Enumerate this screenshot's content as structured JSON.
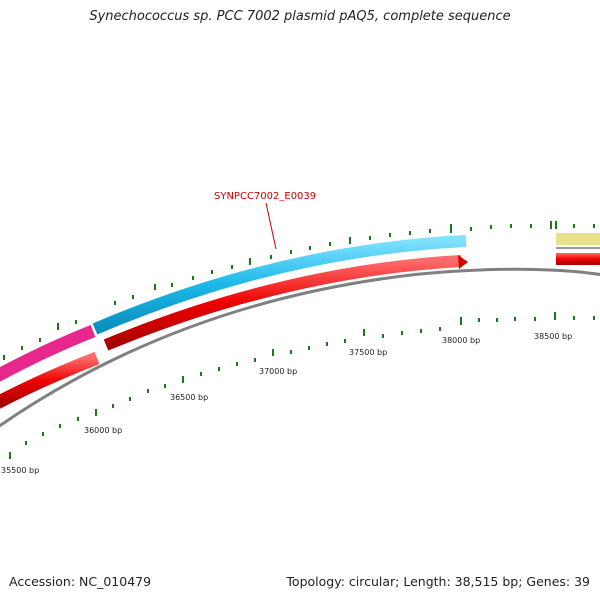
{
  "title": "Synechococcus sp. PCC 7002 plasmid pAQ5, complete sequence",
  "footer": {
    "accession": "Accession: NC_010479",
    "info": "Topology: circular; Length: 38,515 bp; Genes: 39"
  },
  "gene_label": "SYNPCC7002_E0039",
  "bp_labels": [
    "35500 bp",
    "36000 bp",
    "36500 bp",
    "37000 bp",
    "37500 bp",
    "38000 bp",
    "38500 bp"
  ],
  "colors": {
    "forward_cds": "#1ab8e8",
    "pink_feature": "#e8278c",
    "reverse_cds": "#ee0000",
    "yellow_feature": "#e8e08c",
    "backbone": "#808080",
    "ticks": "#1a7a1a",
    "gene_label": "#cc0000"
  }
}
